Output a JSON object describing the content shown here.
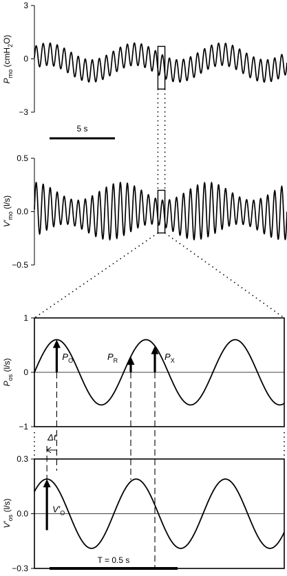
{
  "chart_data": [
    {
      "id": "pmo",
      "type": "line",
      "ylabel_main": "P",
      "ylabel_sub": "mo",
      "ylabel_unit": " (cmH",
      "ylabel_unit_sub": "2",
      "ylabel_unit_end": "O)",
      "yticks": [
        "3",
        "0",
        "−3"
      ],
      "ylim": [
        -3,
        3
      ],
      "time_span_s": 18,
      "scale_bar_label": "5 s",
      "scale_bar_s": 5,
      "zoom_window_s": [
        8.8,
        9.3
      ]
    },
    {
      "id": "vmo",
      "type": "line",
      "ylabel_main": "V′",
      "ylabel_sub": "mo",
      "ylabel_unit": " (l/s)",
      "yticks": [
        "0.5",
        "0.0",
        "−0.5"
      ],
      "ylim": [
        -0.5,
        0.5
      ],
      "time_span_s": 18,
      "zoom_window_s": [
        8.8,
        9.3
      ]
    },
    {
      "id": "pos",
      "type": "line",
      "ylabel_main": "P",
      "ylabel_sub": "os",
      "ylabel_unit": " (l/s)",
      "yticks": [
        "1",
        "0",
        "−1"
      ],
      "ylim": [
        -1,
        1
      ],
      "period_s": 0.5,
      "amplitude": 0.6,
      "peak_labels": [
        {
          "main": "P",
          "sub": "O"
        },
        {
          "main": "P",
          "sub": "R"
        },
        {
          "main": "P",
          "sub": "X"
        }
      ]
    },
    {
      "id": "vos",
      "type": "line",
      "ylabel_main": "V′",
      "ylabel_sub": "os",
      "ylabel_unit": " (l/s)",
      "yticks": [
        "0.3",
        "0.0",
        "−0.3"
      ],
      "ylim": [
        -0.3,
        0.3
      ],
      "period_s": 0.5,
      "amplitude": 0.19,
      "peak_label": {
        "main": "V′",
        "sub": "O"
      },
      "delta_label": "Δt",
      "period_label": "T = 0.5 s"
    }
  ]
}
